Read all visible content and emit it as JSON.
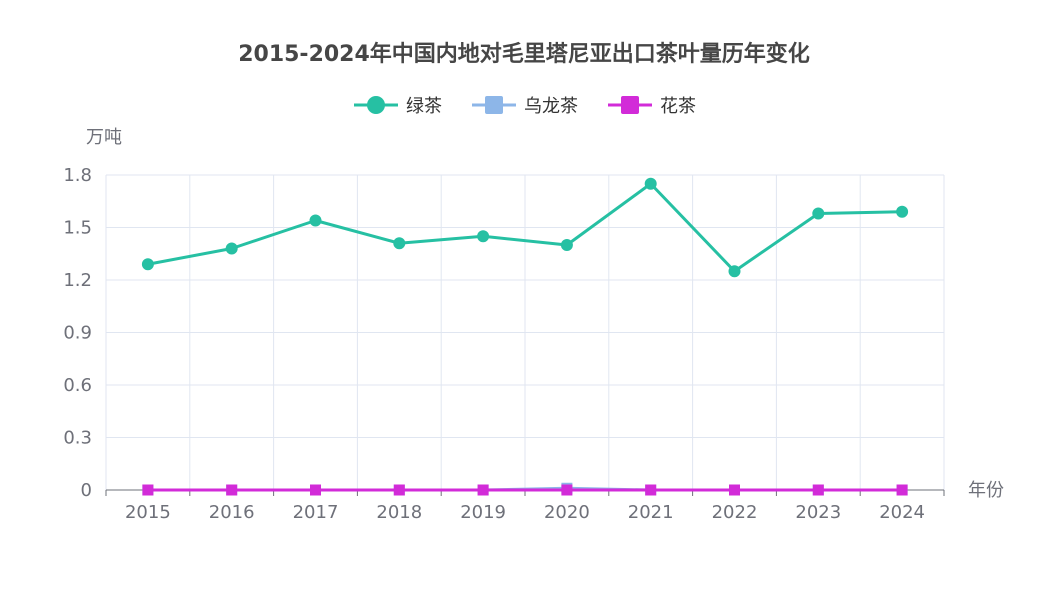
{
  "chart_data": {
    "type": "line",
    "title": "2015-2024年中国内地对毛里塔尼亚出口茶叶量历年变化",
    "xlabel": "年份",
    "ylabel": "万吨",
    "categories": [
      "2015",
      "2016",
      "2017",
      "2018",
      "2019",
      "2020",
      "2021",
      "2022",
      "2023",
      "2024"
    ],
    "ylim": [
      0,
      1.8
    ],
    "yticks": [
      "0",
      "0.3",
      "0.6",
      "0.9",
      "1.2",
      "1.5",
      "1.8"
    ],
    "grid": true,
    "legend_position": "top-center",
    "series": [
      {
        "name": "绿茶",
        "color": "#26c0a3",
        "marker": "circle",
        "values": [
          1.29,
          1.38,
          1.54,
          1.41,
          1.45,
          1.4,
          1.75,
          1.25,
          1.58,
          1.59
        ]
      },
      {
        "name": "乌龙茶",
        "color": "#8db6e8",
        "marker": "square",
        "values": [
          0,
          0,
          0,
          0,
          0,
          0.01,
          0,
          0,
          0,
          0
        ]
      },
      {
        "name": "花茶",
        "color": "#d22bd8",
        "marker": "square",
        "values": [
          0,
          0,
          0,
          0,
          0,
          0,
          0,
          0,
          0,
          0
        ]
      }
    ]
  }
}
